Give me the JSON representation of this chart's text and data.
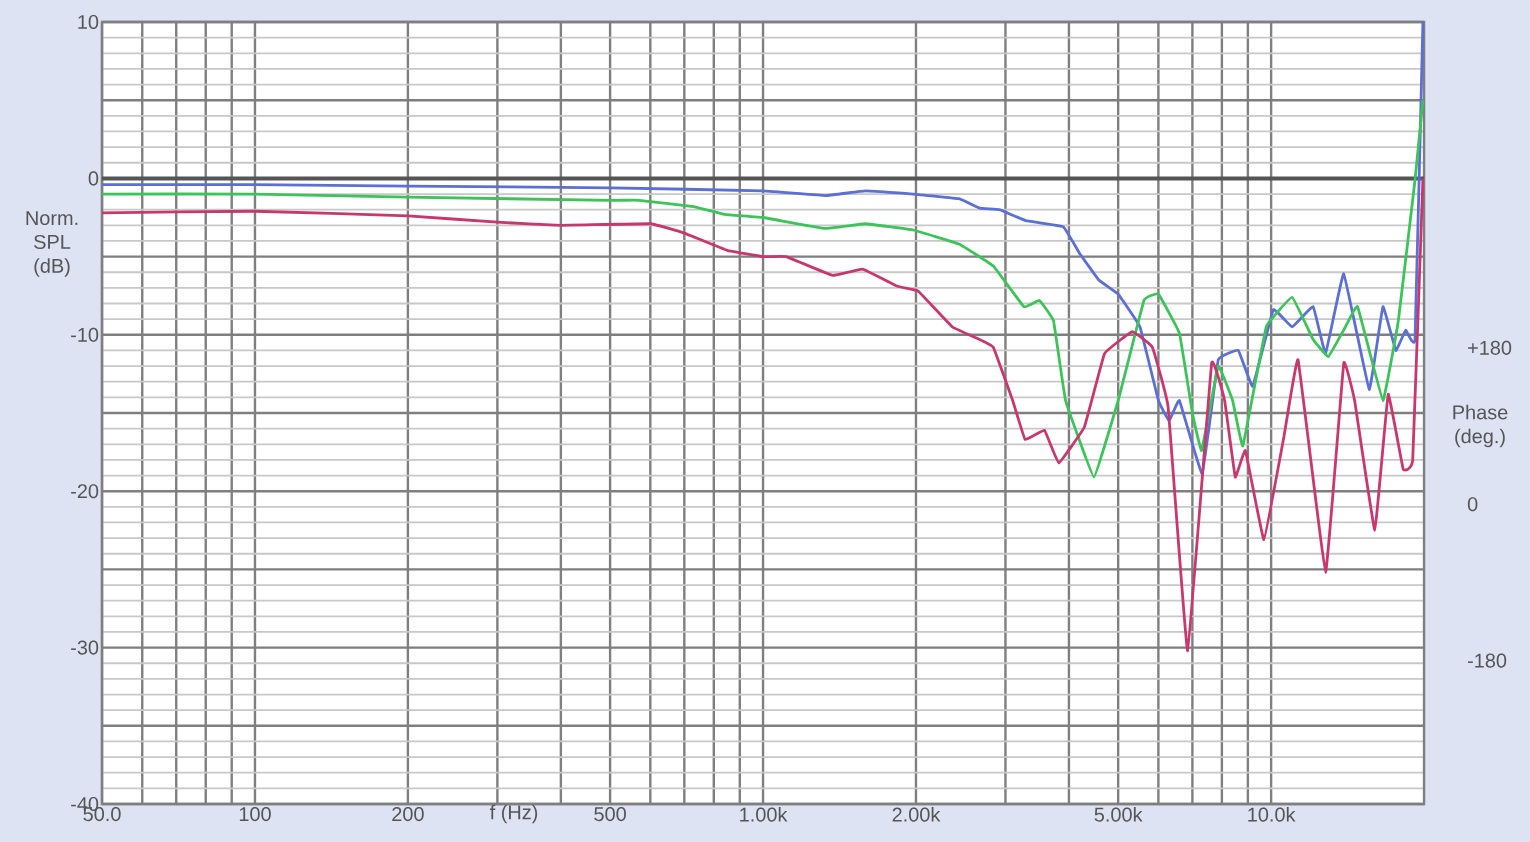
{
  "chart_data": {
    "type": "line",
    "xlabel": "f (Hz)",
    "ylabel": "Norm. SPL (dB)",
    "y2label": "Phase (deg.)",
    "log": "x",
    "grid": true,
    "xlim": [
      50,
      20000
    ],
    "ylim": [
      -40,
      10
    ],
    "y2lim": [
      -345,
      555
    ],
    "xticks": [
      {
        "value": 50,
        "label": "50.0"
      },
      {
        "value": 60,
        "label": null
      },
      {
        "value": 70,
        "label": null
      },
      {
        "value": 80,
        "label": null
      },
      {
        "value": 90,
        "label": null
      },
      100,
      200,
      {
        "value": 300,
        "label": null
      },
      {
        "value": 400,
        "label": null
      },
      500,
      {
        "value": 600,
        "label": null
      },
      {
        "value": 700,
        "label": null
      },
      {
        "value": 800,
        "label": null
      },
      {
        "value": 900,
        "label": null
      },
      {
        "value": 1000,
        "label": "1.00k"
      },
      {
        "value": 2000,
        "label": "2.00k"
      },
      {
        "value": 3000,
        "label": null
      },
      {
        "value": 4000,
        "label": null
      },
      {
        "value": 5000,
        "label": "5.00k"
      },
      {
        "value": 6000,
        "label": null
      },
      {
        "value": 7000,
        "label": null
      },
      {
        "value": 8000,
        "label": null
      },
      {
        "value": 9000,
        "label": null
      },
      {
        "value": 10000,
        "label": "10.0k"
      }
    ],
    "yticks": [
      10,
      {
        "value": 5,
        "label": null
      },
      0,
      {
        "value": -5,
        "label": null
      },
      -10,
      {
        "value": -15,
        "label": null
      },
      -20,
      {
        "value": -25,
        "label": null
      },
      -30,
      {
        "value": -35,
        "label": null
      },
      -40
    ],
    "y2ticks": [
      {
        "value": 180,
        "label": "+180"
      },
      0,
      -180
    ],
    "ref_lines": [
      {
        "axis": "y",
        "value": 0,
        "color": "#555555"
      }
    ],
    "series": [
      {
        "color": "#5b6fd6",
        "x": [
          50,
          100,
          200,
          500,
          1000,
          1325,
          1590,
          1975,
          2430,
          2670,
          2920,
          3290,
          3900,
          4200,
          4580,
          5000,
          5520,
          6000,
          6300,
          6600,
          7320,
          7870,
          8620,
          9200,
          10100,
          11000,
          12100,
          12800,
          13900,
          15600,
          16600,
          17600,
          18400,
          19200,
          19900
        ],
        "values": [
          -0.4,
          -0.4,
          -0.5,
          -0.6,
          -0.8,
          -1.1,
          -0.8,
          -1.0,
          -1.3,
          -1.9,
          -2.0,
          -2.7,
          -3.1,
          -4.8,
          -6.5,
          -7.4,
          -9.5,
          -14.2,
          -15.5,
          -14.2,
          -18.9,
          -11.6,
          -11.0,
          -13.3,
          -8.4,
          -9.5,
          -8.2,
          -11.2,
          -6.1,
          -13.5,
          -8.2,
          -11.0,
          -9.7,
          -10.3,
          10
        ]
      },
      {
        "color": "#3cc35a",
        "x": [
          50,
          100,
          200,
          500,
          570,
          730,
          840,
          1000,
          1325,
          1590,
          1975,
          2430,
          2840,
          3260,
          3500,
          3730,
          3940,
          4480,
          5000,
          5620,
          6000,
          6600,
          7000,
          7300,
          7870,
          8400,
          8800,
          9780,
          11000,
          12100,
          12960,
          14000,
          14800,
          16600,
          17800,
          19200,
          19900
        ],
        "values": [
          -1.0,
          -1.0,
          -1.2,
          -1.4,
          -1.4,
          -1.8,
          -2.3,
          -2.5,
          -3.2,
          -2.9,
          -3.3,
          -4.2,
          -5.6,
          -8.2,
          -7.8,
          -9.1,
          -14.2,
          -19.1,
          -14.2,
          -7.8,
          -7.4,
          -9.9,
          -15.0,
          -17.4,
          -12.0,
          -14.2,
          -17.1,
          -9.5,
          -7.6,
          -10.3,
          -11.4,
          -9.5,
          -8.2,
          -14.2,
          -9.1,
          -0.1,
          5
        ]
      },
      {
        "color": "#c8376e",
        "x": [
          50,
          100,
          200,
          300,
          400,
          600,
          700,
          850,
          1000,
          1110,
          1370,
          1570,
          1840,
          2020,
          2360,
          2670,
          2840,
          3100,
          3280,
          3580,
          3820,
          4290,
          4700,
          5330,
          5840,
          6270,
          6850,
          7640,
          8100,
          8500,
          8900,
          9680,
          10600,
          11300,
          12800,
          13900,
          14600,
          16000,
          17000,
          18200,
          19000,
          19900
        ],
        "values": [
          -2.2,
          -2.1,
          -2.4,
          -2.8,
          -3.0,
          -2.9,
          -3.5,
          -4.6,
          -5.0,
          -5.0,
          -6.2,
          -5.8,
          -6.9,
          -7.2,
          -9.5,
          -10.3,
          -10.8,
          -14.2,
          -16.7,
          -16.1,
          -18.2,
          -15.9,
          -11.2,
          -9.8,
          -10.8,
          -14.6,
          -30.2,
          -11.8,
          -14.2,
          -19.1,
          -17.4,
          -23.1,
          -16.5,
          -11.6,
          -25.2,
          -11.8,
          -14.2,
          -22.5,
          -13.8,
          -18.6,
          -18.0,
          0
        ]
      }
    ]
  }
}
